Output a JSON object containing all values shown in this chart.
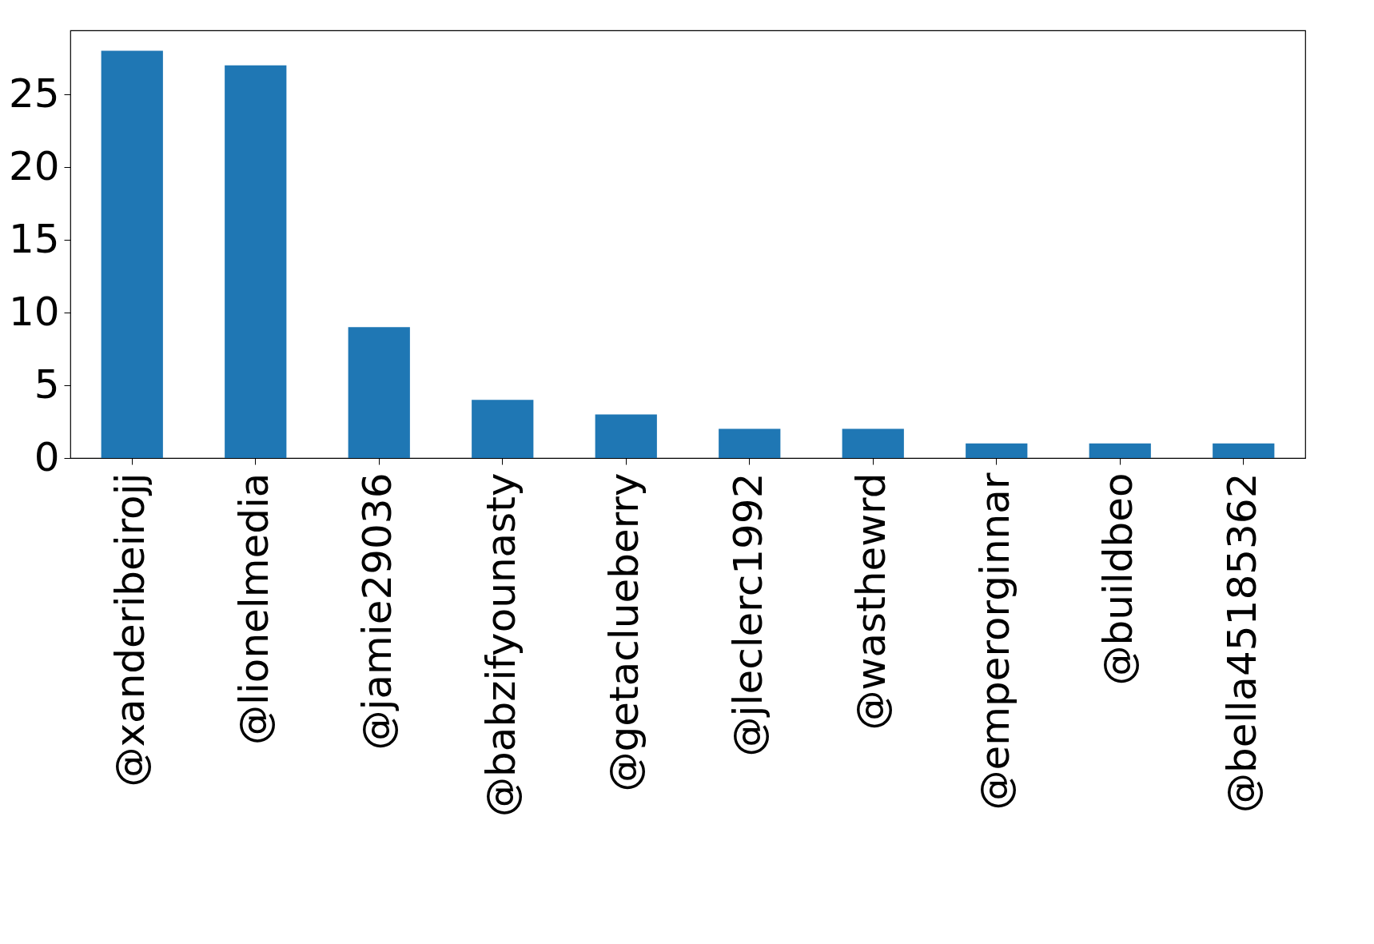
{
  "chart_data": {
    "type": "bar",
    "categories": [
      "@xanderibeirojj",
      "@lionelmedia",
      "@jamie29036",
      "@babzifyounasty",
      "@getaclueberry",
      "@jleclerc1992",
      "@wasthewrd",
      "@emperorginnar",
      "@buildbeo",
      "@bella45185362"
    ],
    "values": [
      28,
      27,
      9,
      4,
      3,
      2,
      2,
      1,
      1,
      1
    ],
    "color": "#1f77b4",
    "ylim": [
      0,
      29.4
    ],
    "yticks": [
      0,
      5,
      10,
      15,
      20,
      25
    ],
    "grid": false
  }
}
